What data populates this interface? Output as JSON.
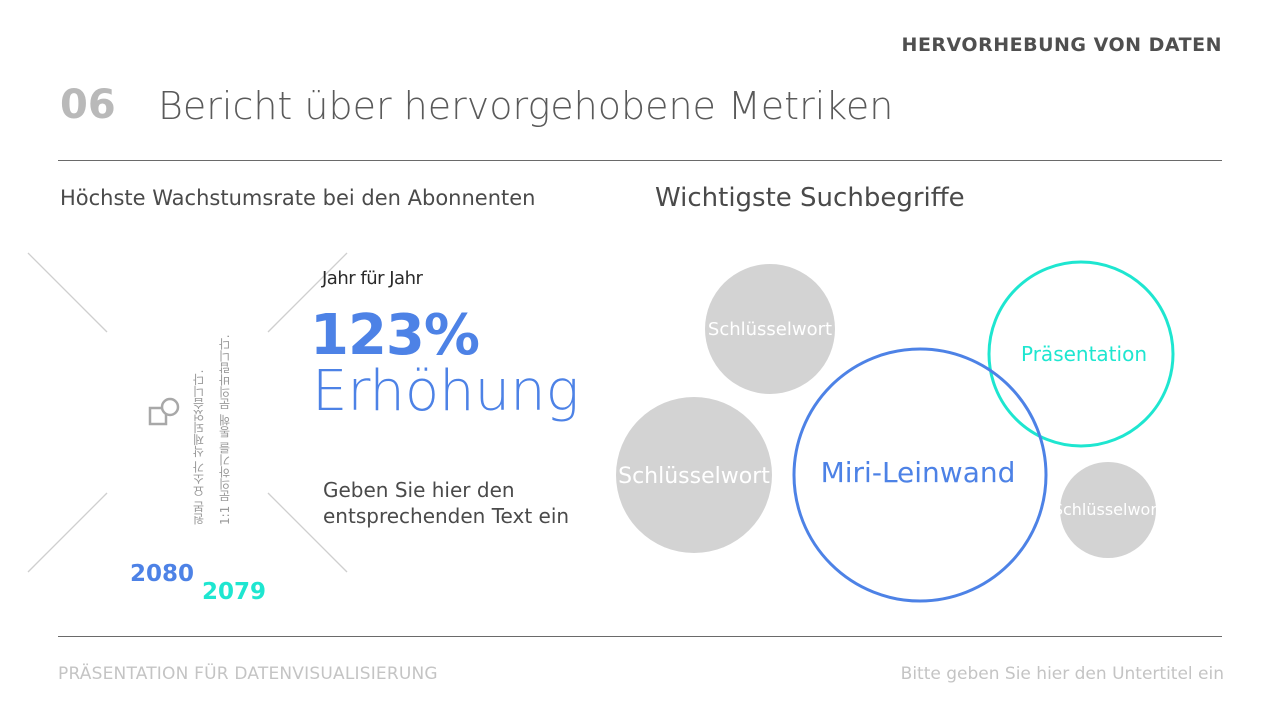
{
  "header": {
    "category": "HERVORHEBUNG VON DATEN",
    "slide_number": "06",
    "title": "Bericht über hervorgehobene Metriken"
  },
  "left_panel": {
    "heading": "Höchste Wachstumsrate bei den Abonnenten",
    "image_placeholder": {
      "line1": "원본 요소가 삭제되었습니다.",
      "line2": "1:1 문의하기를 통해 문의바랍니다.",
      "icon": "shapes-placeholder-icon"
    },
    "years": {
      "first": "2080",
      "second": "2079"
    },
    "period_label": "Jahr für Jahr",
    "metric_value": "123%",
    "metric_label": "Erhöhung",
    "body_text": "Geben Sie hier den entsprechenden Text ein"
  },
  "right_panel": {
    "heading": "Wichtigste Suchbegriffe",
    "bubbles": [
      {
        "label": "Schlüsselwort",
        "style": "filled-gray"
      },
      {
        "label": "Präsentation",
        "style": "outline-teal"
      },
      {
        "label": "Schlüsselwort",
        "style": "filled-gray"
      },
      {
        "label": "Miri-Leinwand",
        "style": "outline-blue"
      },
      {
        "label": "Schlüsselwort",
        "style": "filled-gray"
      }
    ]
  },
  "footer": {
    "left": "PRÄSENTATION FÜR DATENVISUALISIERUNG",
    "right": "Bitte geben Sie hier den Untertitel ein"
  },
  "colors": {
    "blue": "#4d82e6",
    "teal": "#1ee6d0",
    "gray_bubble": "#d3d3d3",
    "text_dark": "#4a4a4a",
    "footer_text": "#c4c4c4"
  }
}
